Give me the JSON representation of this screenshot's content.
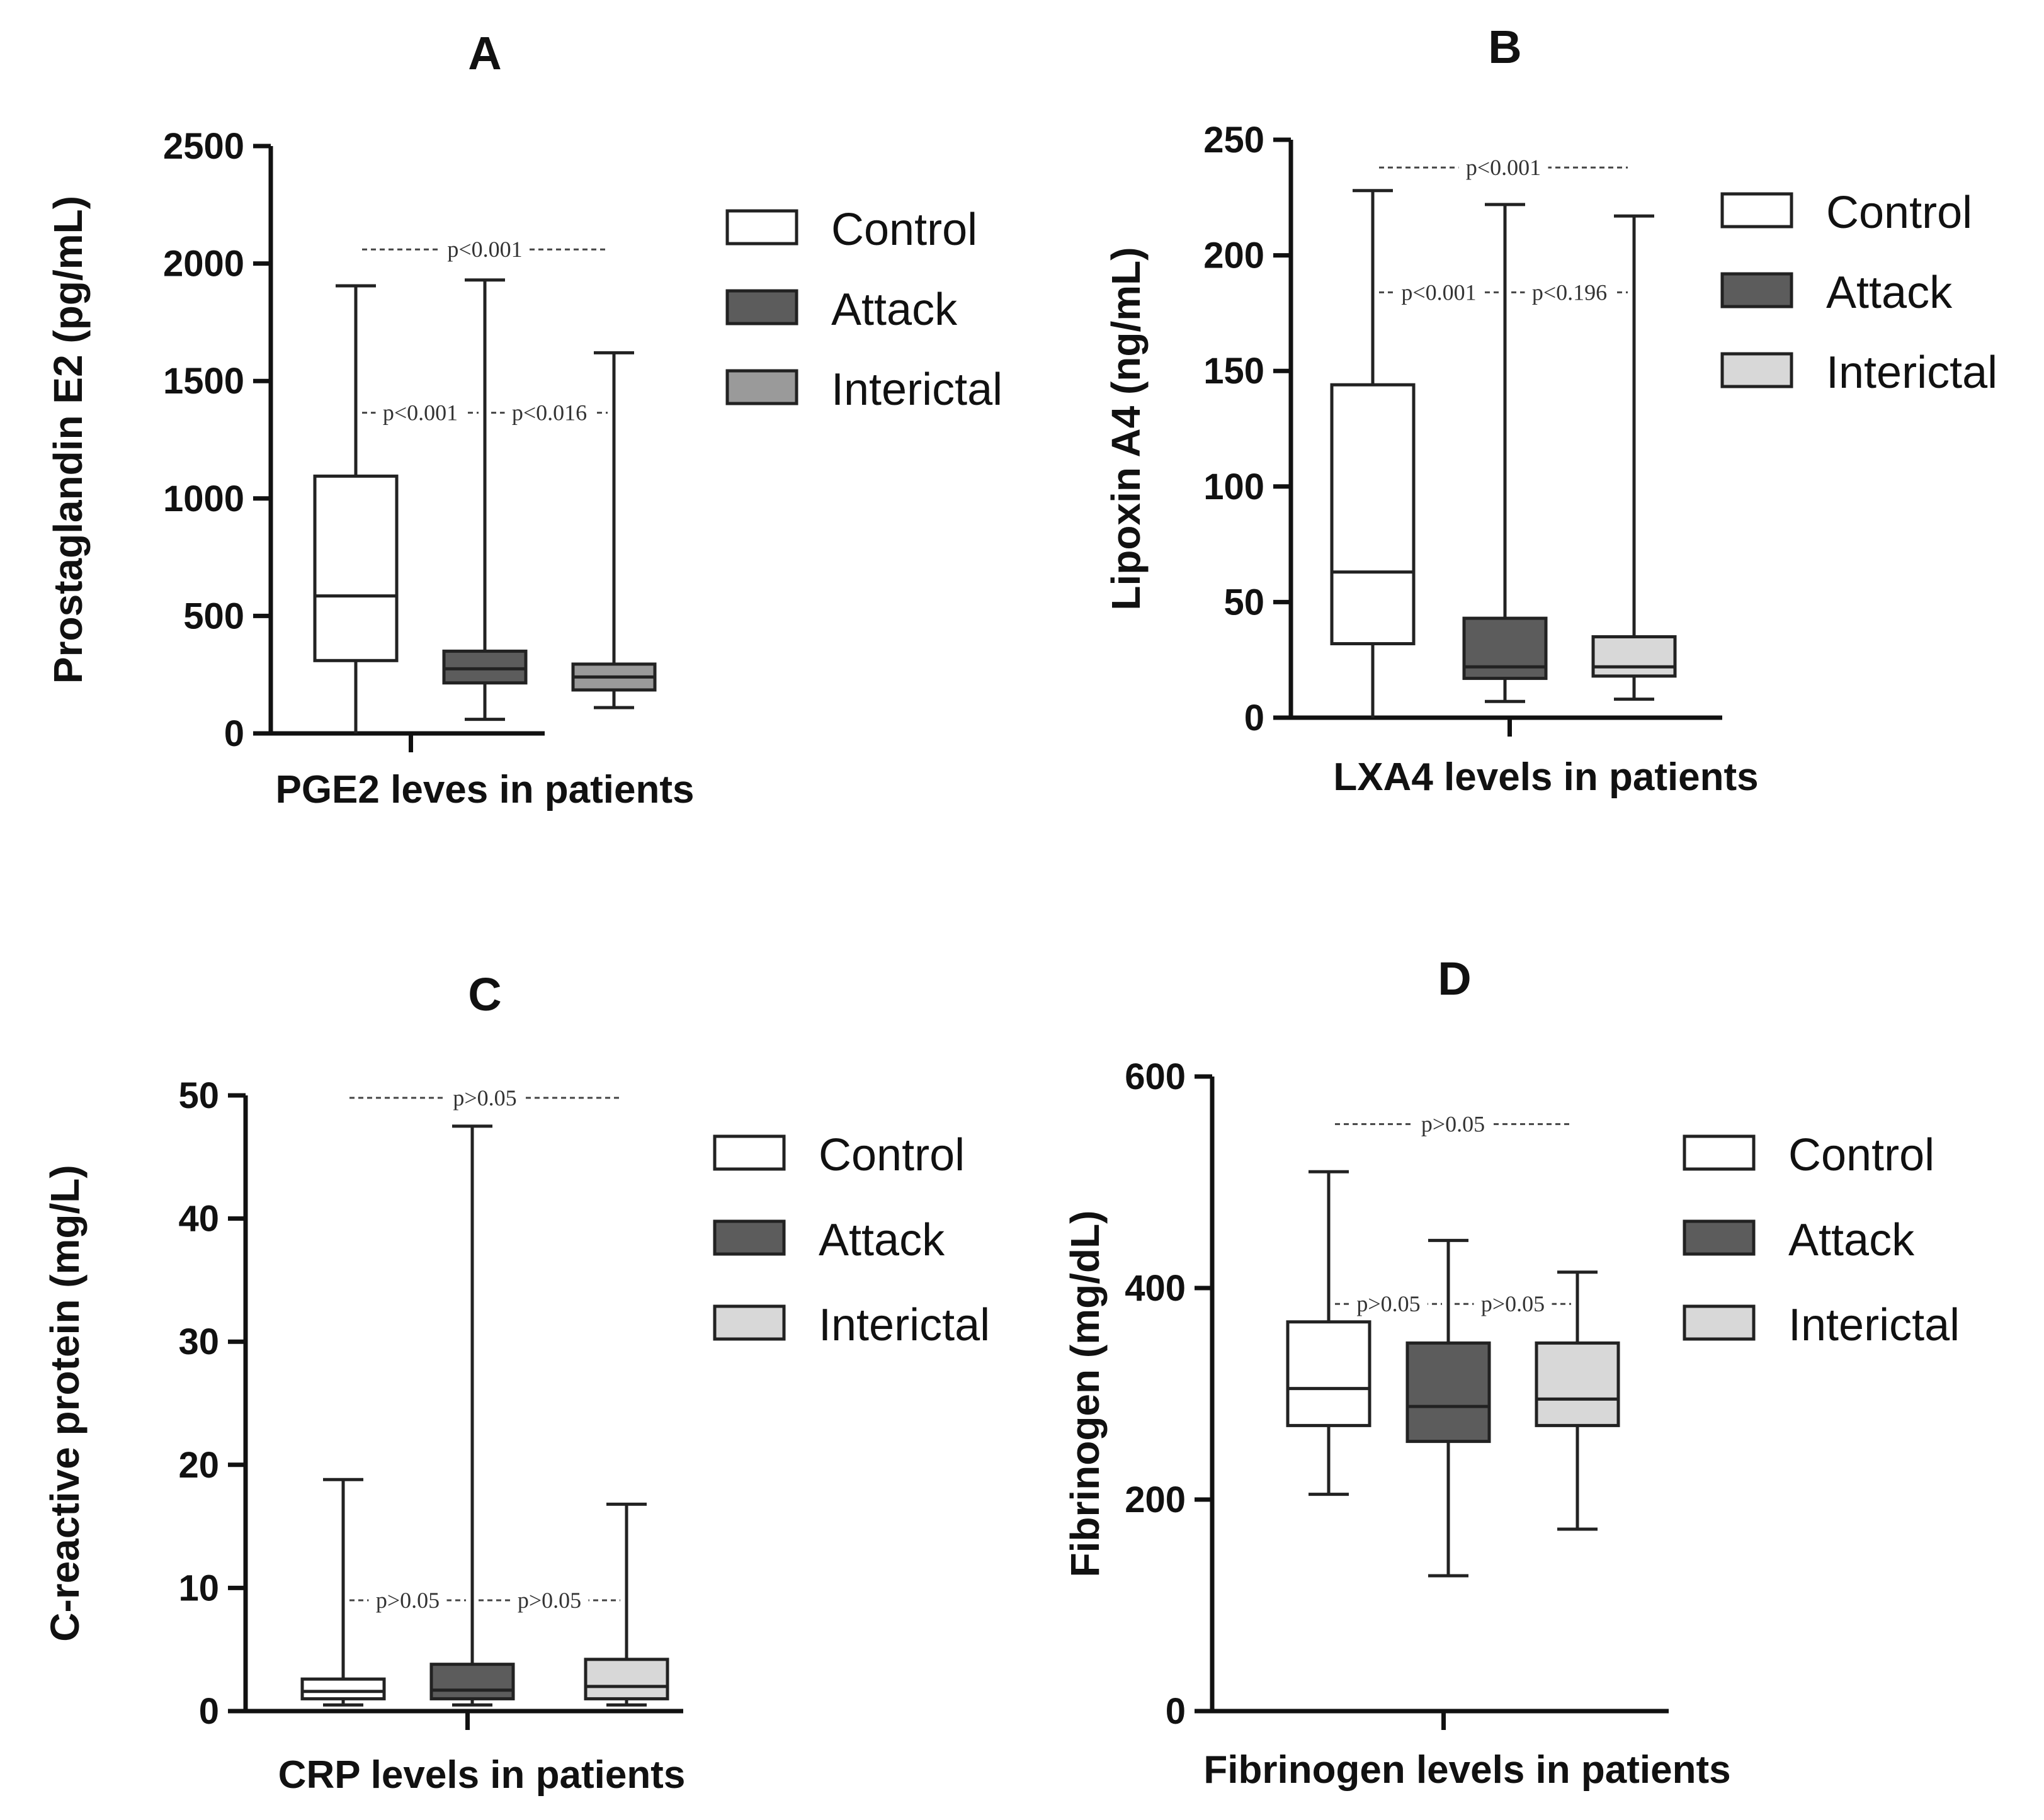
{
  "colors": {
    "Control": "#ffffff",
    "Attack": "#5c5c5c",
    "Interictal_A": "#9a9a9a",
    "Interictal_light": "#d8d8d8",
    "axis": "#111111"
  },
  "chart_data": [
    {
      "type": "box",
      "panel": "A",
      "ylabel": "Prostaglandin E2 (pg/mL)",
      "xlabel": "PGE2 leves in patients",
      "ylim": [
        0,
        2500
      ],
      "yticks": [
        0,
        500,
        1000,
        1500,
        2000,
        2500
      ],
      "legend": [
        "Control",
        "Attack",
        "Interictal"
      ],
      "series": [
        {
          "name": "Control",
          "color": "#ffffff",
          "min": 0,
          "q1": 310,
          "median": 585,
          "q3": 1095,
          "max": 1905
        },
        {
          "name": "Attack",
          "color": "#5c5c5c",
          "min": 60,
          "q1": 215,
          "median": 275,
          "q3": 350,
          "max": 1930
        },
        {
          "name": "Interictal",
          "color": "#9a9a9a",
          "min": 110,
          "q1": 185,
          "median": 240,
          "q3": 295,
          "max": 1620
        }
      ],
      "annotations": [
        {
          "text": "p<0.001",
          "from": 0,
          "to": 2,
          "y": 2060
        },
        {
          "text": "p<0.001",
          "from": 0,
          "to": 1,
          "y": 1365
        },
        {
          "text": "p<0.016",
          "from": 1,
          "to": 2,
          "y": 1365
        }
      ]
    },
    {
      "type": "box",
      "panel": "B",
      "ylabel": "Lipoxin A4 (ng/mL)",
      "xlabel": "LXA4 levels in patients",
      "ylim": [
        0,
        250
      ],
      "yticks": [
        0,
        50,
        100,
        150,
        200,
        250
      ],
      "legend": [
        "Control",
        "Attack",
        "Interictal"
      ],
      "series": [
        {
          "name": "Control",
          "color": "#ffffff",
          "min": 0,
          "q1": 32,
          "median": 63,
          "q3": 144,
          "max": 228
        },
        {
          "name": "Attack",
          "color": "#5c5c5c",
          "min": 7,
          "q1": 17,
          "median": 22,
          "q3": 43,
          "max": 222
        },
        {
          "name": "Interictal",
          "color": "#d8d8d8",
          "min": 8,
          "q1": 18,
          "median": 22,
          "q3": 35,
          "max": 217
        }
      ],
      "annotations": [
        {
          "text": "p<0.001",
          "from": 0,
          "to": 2,
          "y": 238
        },
        {
          "text": "p<0.001",
          "from": 0,
          "to": 1,
          "y": 184
        },
        {
          "text": "p<0.196",
          "from": 1,
          "to": 2,
          "y": 184
        }
      ]
    },
    {
      "type": "box",
      "panel": "C",
      "ylabel": "C-reactive protein (mg/L)",
      "xlabel": "CRP levels in patients",
      "ylim": [
        0,
        50
      ],
      "yticks": [
        0,
        10,
        20,
        30,
        40,
        50
      ],
      "legend": [
        "Control",
        "Attack",
        "Interictal"
      ],
      "series": [
        {
          "name": "Control",
          "color": "#ffffff",
          "min": 0.5,
          "q1": 1.0,
          "median": 1.6,
          "q3": 2.6,
          "max": 18.8
        },
        {
          "name": "Attack",
          "color": "#5c5c5c",
          "min": 0.5,
          "q1": 1.0,
          "median": 1.7,
          "q3": 3.8,
          "max": 47.5
        },
        {
          "name": "Interictal",
          "color": "#d8d8d8",
          "min": 0.5,
          "q1": 1.0,
          "median": 2.0,
          "q3": 4.2,
          "max": 16.8
        }
      ],
      "annotations": [
        {
          "text": "p>0.05",
          "from": 0,
          "to": 2,
          "y": 49.8
        },
        {
          "text": "p>0.05",
          "from": 0,
          "to": 1,
          "y": 9.0
        },
        {
          "text": "p>0.05",
          "from": 1,
          "to": 2,
          "y": 9.0
        }
      ]
    },
    {
      "type": "box",
      "panel": "D",
      "ylabel": "Fibrinogen (mg/dL)",
      "xlabel": "Fibrinogen levels in patients",
      "ylim": [
        0,
        600
      ],
      "yticks": [
        0,
        200,
        400,
        600
      ],
      "legend": [
        "Control",
        "Attack",
        "Interictal"
      ],
      "series": [
        {
          "name": "Control",
          "color": "#ffffff",
          "min": 205,
          "q1": 270,
          "median": 305,
          "q3": 368,
          "max": 510
        },
        {
          "name": "Attack",
          "color": "#5c5c5c",
          "min": 128,
          "q1": 255,
          "median": 288,
          "q3": 348,
          "max": 445
        },
        {
          "name": "Interictal",
          "color": "#d8d8d8",
          "min": 172,
          "q1": 270,
          "median": 295,
          "q3": 348,
          "max": 415
        }
      ],
      "annotations": [
        {
          "text": "p>0.05",
          "from": 0,
          "to": 2,
          "y": 555
        },
        {
          "text": "p>0.05",
          "from": 0,
          "to": 1,
          "y": 385
        },
        {
          "text": "p>0.05",
          "from": 1,
          "to": 2,
          "y": 385
        }
      ]
    }
  ]
}
